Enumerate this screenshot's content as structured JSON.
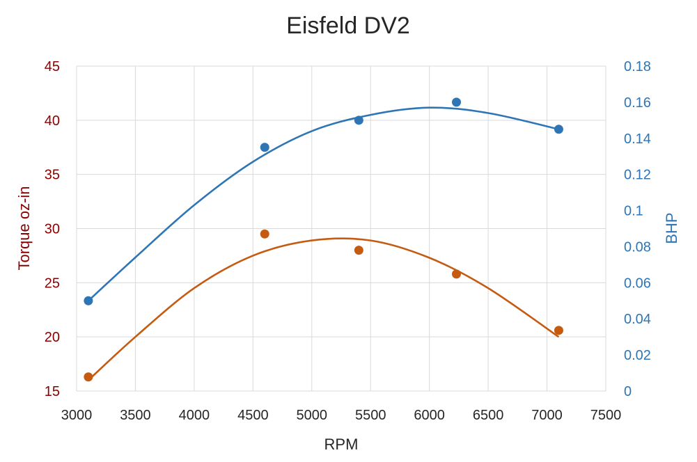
{
  "chart_data": {
    "type": "scatter",
    "title": "Eisfeld DV2",
    "xlabel": "RPM",
    "ylabel": "Torque oz-in",
    "y2label": "BHP",
    "xlim": [
      3000,
      7500
    ],
    "ylim": [
      15,
      45
    ],
    "y2lim": [
      0,
      0.18
    ],
    "x_ticks": [
      3000,
      3500,
      4000,
      4500,
      5000,
      5500,
      6000,
      6500,
      7000,
      7500
    ],
    "y_ticks": [
      15,
      20,
      25,
      30,
      35,
      40,
      45
    ],
    "y2_ticks": [
      "0",
      "0.02",
      "0.04",
      "0.06",
      "0.08",
      "0.1",
      "0.12",
      "0.14",
      "0.16",
      "0.18"
    ],
    "grid": true,
    "legend": "none",
    "series": [
      {
        "axis": "left",
        "color": "#C55A11",
        "points": [
          {
            "x": 3100,
            "y": 16.3
          },
          {
            "x": 4600,
            "y": 29.5
          },
          {
            "x": 5400,
            "y": 28.0
          },
          {
            "x": 6230,
            "y": 25.8
          },
          {
            "x": 7100,
            "y": 20.6
          }
        ],
        "trendline": "polynomial",
        "trend_curve": [
          {
            "x": 3100,
            "y": 16.0
          },
          {
            "x": 3500,
            "y": 20.0
          },
          {
            "x": 4000,
            "y": 24.5
          },
          {
            "x": 4500,
            "y": 27.5
          },
          {
            "x": 5000,
            "y": 28.9
          },
          {
            "x": 5500,
            "y": 28.9
          },
          {
            "x": 6000,
            "y": 27.3
          },
          {
            "x": 6500,
            "y": 24.5
          },
          {
            "x": 7100,
            "y": 20.0
          }
        ]
      },
      {
        "axis": "right",
        "color": "#2E75B6",
        "points": [
          {
            "x": 3100,
            "y": 0.05
          },
          {
            "x": 4600,
            "y": 0.135
          },
          {
            "x": 5400,
            "y": 0.15
          },
          {
            "x": 6230,
            "y": 0.16
          },
          {
            "x": 7100,
            "y": 0.145
          }
        ],
        "trendline": "polynomial",
        "trend_curve": [
          {
            "x": 3100,
            "y": 0.05
          },
          {
            "x": 3500,
            "y": 0.074
          },
          {
            "x": 4000,
            "y": 0.103
          },
          {
            "x": 4500,
            "y": 0.127
          },
          {
            "x": 5000,
            "y": 0.144
          },
          {
            "x": 5500,
            "y": 0.153
          },
          {
            "x": 6000,
            "y": 0.157
          },
          {
            "x": 6500,
            "y": 0.154
          },
          {
            "x": 7100,
            "y": 0.145
          }
        ]
      }
    ],
    "colors": {
      "left_axis_text": "#8B0000",
      "right_axis_text": "#2E75B6",
      "grid": "#D9D9D9",
      "axis_text": "#262626"
    }
  }
}
